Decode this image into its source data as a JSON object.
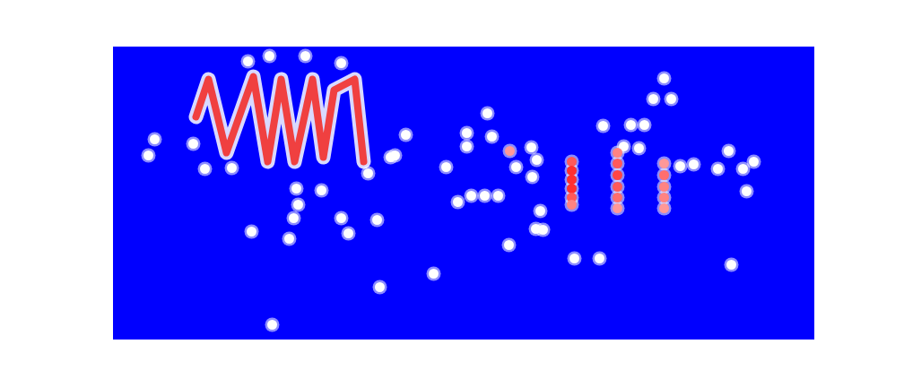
{
  "chart_data": {
    "type": "scatter",
    "xlim": [
      0,
      781
    ],
    "ylim": [
      0,
      326
    ],
    "tick_labels": false,
    "zlim": [
      0,
      1
    ],
    "series": [
      {
        "type": "line",
        "color": "#f04040",
        "x": [
          92,
          106,
          126,
          156,
          172,
          187,
          202,
          222,
          234,
          246,
          269,
          279
        ],
        "y": [
          248,
          290,
          208,
          293,
          198,
          290,
          198,
          290,
          203,
          278,
          290,
          198
        ]
      },
      {
        "type": "scatter",
        "x": [
          46,
          39,
          89,
          102,
          132,
          150,
          174,
          214,
          254,
          204,
          232,
          206,
          201,
          254,
          262,
          196,
          154,
          177,
          294,
          314,
          326,
          284,
          297,
          357,
          371,
          394,
          422,
          394,
          399,
          414,
          429,
          442,
          449,
          384,
          467,
          472,
          476,
          471,
          479,
          441,
          514,
          542,
          689,
          417,
          546,
          577,
          592,
          602,
          622,
          614,
          569,
          586,
          632,
          647,
          674,
          686,
          702,
          714,
          706,
          466,
          309,
          511,
          511,
          511,
          511,
          511,
          511,
          562,
          562,
          562,
          562,
          562,
          562,
          614,
          614,
          614,
          614,
          614
        ],
        "y": [
          223,
          205,
          218,
          190,
          191,
          310,
          316,
          316,
          308,
          168,
          166,
          150,
          135,
          135,
          118,
          112,
          120,
          16,
          133,
          205,
          228,
          185,
          58,
          73,
          192,
          230,
          226,
          215,
          160,
          160,
          160,
          210,
          192,
          153,
          181,
          200,
          143,
          123,
          122,
          105,
          90,
          90,
          83,
          252,
          238,
          239,
          239,
          268,
          268,
          291,
          215,
          213,
          193,
          195,
          190,
          210,
          190,
          198,
          165,
          214,
          203,
          198,
          188,
          178,
          168,
          158,
          150,
          208,
          196,
          183,
          170,
          158,
          146,
          196,
          183,
          170,
          158,
          146
        ],
        "values": [
          0,
          0,
          0,
          0,
          0,
          0,
          0,
          0,
          0,
          0,
          0,
          0,
          0,
          0,
          0,
          0,
          0,
          0,
          0,
          0,
          0,
          0,
          0,
          0,
          0,
          0,
          0,
          0,
          0,
          0,
          0,
          0.5,
          0,
          0,
          0,
          0,
          0,
          0,
          0,
          0,
          0,
          0,
          0,
          0,
          0,
          0,
          0,
          0,
          0,
          0,
          0,
          0,
          0,
          0,
          0,
          0,
          0,
          0,
          0,
          0,
          0,
          0.8,
          1,
          1,
          1,
          0.8,
          0.6,
          0.6,
          0.8,
          0.9,
          0.8,
          0.7,
          0.5,
          0.5,
          0.7,
          0.6,
          0.6,
          0.5
        ]
      }
    ]
  }
}
